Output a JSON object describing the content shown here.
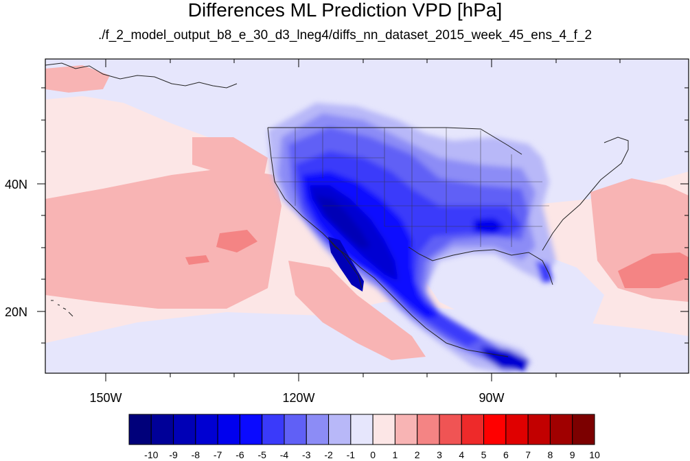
{
  "title": "Differences ML Prediction VPD [hPa]",
  "subtitle": "./f_2_model_output_b8_e_30_d3_lneg4/diffs_nn_dataset_2015_week_45_ens_4_f_2",
  "map": {
    "lon_range": [
      -160,
      -61
    ],
    "lat_range": [
      11,
      60
    ],
    "lon_ticks": [
      "150W",
      "120W",
      "90W"
    ],
    "lat_ticks": [
      "40N",
      "20N"
    ],
    "projection": "cylindrical-equidistant"
  },
  "colorbar": {
    "labels": [
      "-10",
      "-9",
      "-8",
      "-7",
      "-6",
      "-5",
      "-4",
      "-3",
      "-2",
      "-1",
      "0",
      "1",
      "2",
      "3",
      "4",
      "5",
      "6",
      "7",
      "8",
      "9",
      "10"
    ],
    "colors": [
      "#00007a",
      "#000098",
      "#0000b6",
      "#0000d2",
      "#0000ee",
      "#0a0aff",
      "#3a3afa",
      "#6060f6",
      "#8c8cf6",
      "#b8b8f8",
      "#e6e6fc",
      "#fce6e6",
      "#f8b4b4",
      "#f48484",
      "#f05454",
      "#ee2a2a",
      "#ff0000",
      "#e00000",
      "#c20000",
      "#a00000",
      "#7c0000"
    ]
  }
}
